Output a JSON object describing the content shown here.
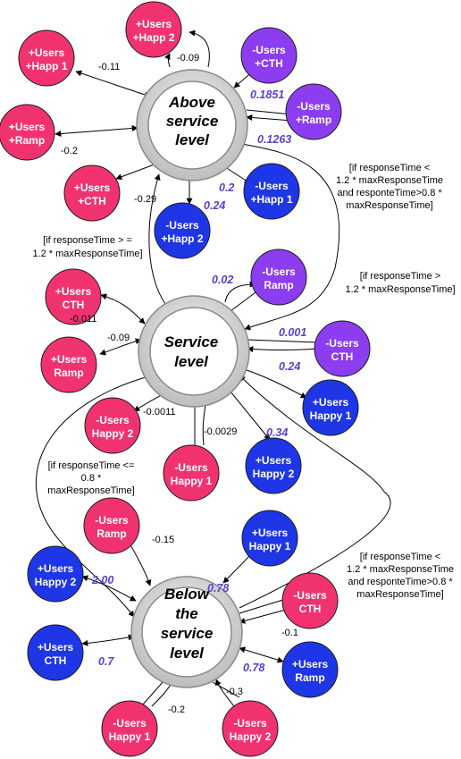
{
  "states": {
    "above": {
      "lines": [
        "Above",
        "service",
        "level"
      ]
    },
    "service": {
      "lines": [
        "Service",
        "level"
      ]
    },
    "below": {
      "lines": [
        "Below",
        "the",
        "service",
        "level"
      ]
    }
  },
  "action_nodes": [
    {
      "id": "a-uh1",
      "lines": [
        "+Users",
        "+Happ 1"
      ],
      "color": "#f0336f"
    },
    {
      "id": "a-uh2",
      "lines": [
        "+Users",
        "+Happ 2"
      ],
      "color": "#f0336f"
    },
    {
      "id": "a-dcth",
      "lines": [
        "-Users",
        "+CTH"
      ],
      "color": "#8c3df0"
    },
    {
      "id": "a-dramp",
      "lines": [
        "-Users",
        "+Ramp"
      ],
      "color": "#8c3df0"
    },
    {
      "id": "a-uramp",
      "lines": [
        "+Users",
        "+Ramp"
      ],
      "color": "#f0336f"
    },
    {
      "id": "a-ucth",
      "lines": [
        "+Users",
        "+CTH"
      ],
      "color": "#f0336f"
    },
    {
      "id": "a-dh1",
      "lines": [
        "-Users",
        "+Happ 1"
      ],
      "color": "#1f36e6"
    },
    {
      "id": "a-dh2",
      "lines": [
        "-Users",
        "+Happ 2"
      ],
      "color": "#1f36e6"
    },
    {
      "id": "s-ucth",
      "lines": [
        "+Users",
        "CTH"
      ],
      "color": "#f0336f"
    },
    {
      "id": "s-uramp",
      "lines": [
        "+Users",
        "Ramp"
      ],
      "color": "#f0336f"
    },
    {
      "id": "s-dramp",
      "lines": [
        "-Users",
        "Ramp"
      ],
      "color": "#8c3df0"
    },
    {
      "id": "s-dcth",
      "lines": [
        "-Users",
        "CTH"
      ],
      "color": "#8c3df0"
    },
    {
      "id": "s-uh1",
      "lines": [
        "+Users",
        "Happy 1"
      ],
      "color": "#1f36e6"
    },
    {
      "id": "s-uh2",
      "lines": [
        "+Users",
        "Happy 2"
      ],
      "color": "#1f36e6"
    },
    {
      "id": "s-dh1",
      "lines": [
        "-Users",
        "Happy 1"
      ],
      "color": "#f0336f"
    },
    {
      "id": "s-dh2",
      "lines": [
        "-Users",
        "Happy 2"
      ],
      "color": "#f0336f"
    },
    {
      "id": "b-dramp",
      "lines": [
        "-Users",
        "Ramp"
      ],
      "color": "#f0336f"
    },
    {
      "id": "b-uh1",
      "lines": [
        "+Users",
        "Happy 1"
      ],
      "color": "#1f36e6"
    },
    {
      "id": "b-uh2",
      "lines": [
        "+Users",
        "Happy 2"
      ],
      "color": "#1f36e6"
    },
    {
      "id": "b-dcth",
      "lines": [
        "-Users",
        "CTH"
      ],
      "color": "#f0336f"
    },
    {
      "id": "b-ucth",
      "lines": [
        "+Users",
        "CTH"
      ],
      "color": "#1f36e6"
    },
    {
      "id": "b-uramp",
      "lines": [
        "+Users",
        "Ramp"
      ],
      "color": "#1f36e6"
    },
    {
      "id": "b-dh1",
      "lines": [
        "-Users",
        "Happy 1"
      ],
      "color": "#f0336f"
    },
    {
      "id": "b-dh2",
      "lines": [
        "-Users",
        "Happy 2"
      ],
      "color": "#f0336f"
    }
  ],
  "weights": {
    "a_uh1": "-0.11",
    "a_uh2": "-0.09",
    "a_dcth": "0.1851",
    "a_dramp": "0.1263",
    "a_uramp": "-0.2",
    "a_ucth": "-0.29",
    "a_dh1": "0.2",
    "a_dh2": "0.24",
    "s_ucth": "-0.011",
    "s_uramp": "-0.09",
    "s_dramp": "0.02",
    "s_dcth": "0.001",
    "s_uh1": "0.24",
    "s_uh2": "0.34",
    "s_dh1": "-0.0029",
    "s_dh2": "-0.0011",
    "b_dramp": "-0.15",
    "b_uh1": "0.78",
    "b_uh2": "2.00",
    "b_dcth": "-0.1",
    "b_ucth": "0.7",
    "b_uramp": "0.78",
    "b_dh1": "-0.2",
    "b_dh2": "-0.3"
  },
  "conditions": {
    "above_to_service": [
      "[if responseTime <",
      "1.2 * maxResponseTime",
      "and responteTime>0.8 *",
      "maxResponseTime]"
    ],
    "service_to_above": [
      "[if responseTime > =",
      "1.2 * maxResponseTime]"
    ],
    "service_self": [
      "[if responseTime >",
      "1.2 * maxResponseTime]"
    ],
    "service_to_below": [
      "[if responseTime <=",
      "0.8 *",
      "maxResponseTime]"
    ],
    "below_to_service": [
      "[if responseTime <",
      "1.2 * maxResponseTime",
      "and responteTime>0.8 *",
      "maxResponseTime]"
    ]
  }
}
